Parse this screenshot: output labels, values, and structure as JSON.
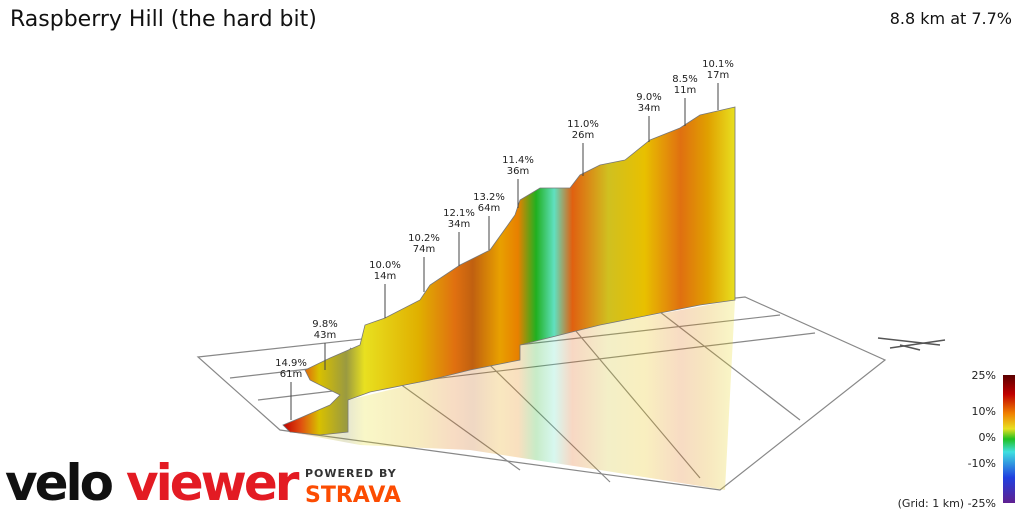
{
  "header": {
    "title": "Raspberry Hill (the hard bit)",
    "summary": "8.8 km at 7.7%"
  },
  "annotations": [
    {
      "grade": "14.9%",
      "length": "61m"
    },
    {
      "grade": "9.8%",
      "length": "43m"
    },
    {
      "grade": "10.0%",
      "length": "14m"
    },
    {
      "grade": "10.2%",
      "length": "74m"
    },
    {
      "grade": "12.1%",
      "length": "34m"
    },
    {
      "grade": "13.2%",
      "length": "64m"
    },
    {
      "grade": "11.4%",
      "length": "36m"
    },
    {
      "grade": "11.0%",
      "length": "26m"
    },
    {
      "grade": "9.0%",
      "length": "34m"
    },
    {
      "grade": "8.5%",
      "length": "11m"
    },
    {
      "grade": "10.1%",
      "length": "17m"
    }
  ],
  "legend": {
    "labels": [
      "25%",
      "10%",
      "0%",
      "-10%",
      "(Grid: 1 km) -25%"
    ]
  },
  "branding": {
    "velo": "velo",
    "viewer": "viewer",
    "powered_by": "POWERED BY",
    "strava": "STRAVA"
  }
}
